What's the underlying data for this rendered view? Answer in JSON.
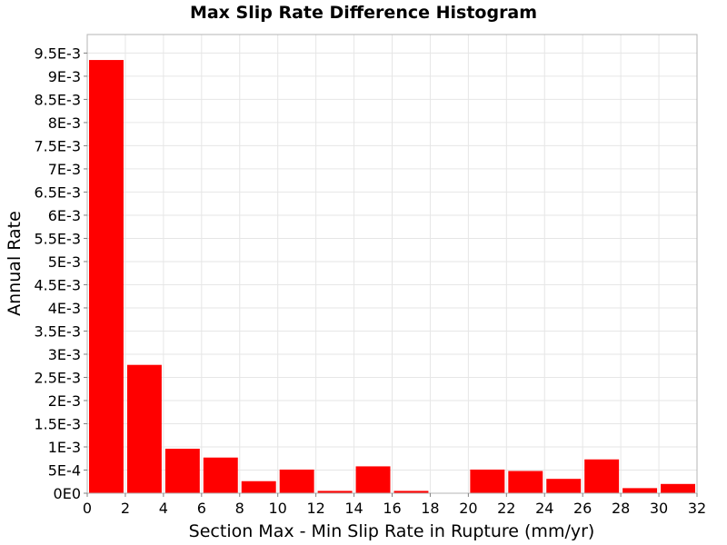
{
  "chart_data": {
    "type": "bar",
    "title": "Max Slip Rate Difference Histogram",
    "xlabel": "Section Max - Min Slip Rate in Rupture (mm/yr)",
    "ylabel": "Annual Rate",
    "xlim": [
      0,
      32
    ],
    "ylim": [
      0,
      0.0099
    ],
    "bin_width": 2,
    "grid": true,
    "bar_color": "#ff0000",
    "x_ticks": [
      0,
      2,
      4,
      6,
      8,
      10,
      12,
      14,
      16,
      18,
      20,
      22,
      24,
      26,
      28,
      30,
      32
    ],
    "x_tick_labels": [
      "0",
      "2",
      "4",
      "6",
      "8",
      "10",
      "12",
      "14",
      "16",
      "18",
      "20",
      "22",
      "24",
      "26",
      "28",
      "30",
      "32"
    ],
    "y_ticks": [
      0,
      0.0005,
      0.001,
      0.0015,
      0.002,
      0.0025,
      0.003,
      0.0035,
      0.004,
      0.0045,
      0.005,
      0.0055,
      0.006,
      0.0065,
      0.007,
      0.0075,
      0.008,
      0.0085,
      0.009,
      0.0095
    ],
    "y_tick_labels": [
      "0E0",
      "5E-4",
      "1E-3",
      "1.5E-3",
      "2E-3",
      "2.5E-3",
      "3E-3",
      "3.5E-3",
      "4E-3",
      "4.5E-3",
      "5E-3",
      "5.5E-3",
      "6E-3",
      "6.5E-3",
      "7E-3",
      "7.5E-3",
      "8E-3",
      "8.5E-3",
      "9E-3",
      "9.5E-3"
    ],
    "bins": [
      {
        "x_start": 0,
        "x_end": 2,
        "value": 0.00935
      },
      {
        "x_start": 2,
        "x_end": 4,
        "value": 0.00277
      },
      {
        "x_start": 4,
        "x_end": 6,
        "value": 0.00096
      },
      {
        "x_start": 6,
        "x_end": 8,
        "value": 0.00077
      },
      {
        "x_start": 8,
        "x_end": 10,
        "value": 0.00026
      },
      {
        "x_start": 10,
        "x_end": 12,
        "value": 0.00051
      },
      {
        "x_start": 12,
        "x_end": 14,
        "value": 5e-05
      },
      {
        "x_start": 14,
        "x_end": 16,
        "value": 0.00058
      },
      {
        "x_start": 16,
        "x_end": 18,
        "value": 5e-05
      },
      {
        "x_start": 18,
        "x_end": 20,
        "value": 0.0
      },
      {
        "x_start": 20,
        "x_end": 22,
        "value": 0.00051
      },
      {
        "x_start": 22,
        "x_end": 24,
        "value": 0.00048
      },
      {
        "x_start": 24,
        "x_end": 26,
        "value": 0.00031
      },
      {
        "x_start": 26,
        "x_end": 28,
        "value": 0.00073
      },
      {
        "x_start": 28,
        "x_end": 30,
        "value": 0.00011
      },
      {
        "x_start": 30,
        "x_end": 32,
        "value": 0.0002
      }
    ]
  }
}
